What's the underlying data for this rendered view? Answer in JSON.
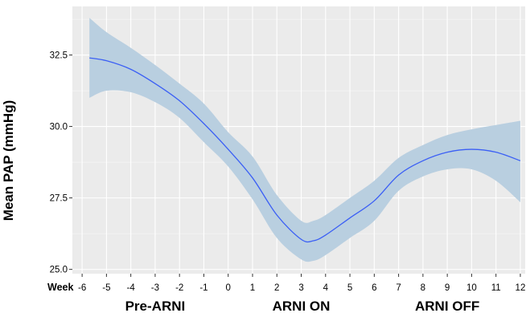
{
  "chart_data": {
    "type": "line",
    "ylabel": "Mean PAP (mmHg)",
    "x_axis_prefix": "Week",
    "x_ticks": [
      "-6",
      "-5",
      "-4",
      "-3",
      "-2",
      "-1",
      "0",
      "1",
      "2",
      "3",
      "4",
      "5",
      "6",
      "7",
      "8",
      "9",
      "10",
      "11",
      "12"
    ],
    "y_ticks": [
      "25.0",
      "27.5",
      "30.0",
      "32.5"
    ],
    "xlim": [
      -6.4,
      12.2
    ],
    "ylim": [
      24.85,
      34.2
    ],
    "phase_labels": [
      {
        "text": "Pre-ARNI",
        "at_week": -3
      },
      {
        "text": "ARNI ON",
        "at_week": 3
      },
      {
        "text": "ARNI OFF",
        "at_week": 9
      }
    ],
    "grid": true,
    "series": [
      {
        "line_color": "#3b5ff5",
        "band_color": "#b9cfe0",
        "x": [
          -5.7,
          -5,
          -4,
          -3,
          -2,
          -1,
          0,
          1,
          2,
          3,
          3.5,
          4,
          5,
          6,
          7,
          8,
          9,
          10,
          11,
          12
        ],
        "y": [
          32.4,
          32.3,
          32.0,
          31.5,
          30.9,
          30.1,
          29.2,
          28.2,
          26.9,
          26.05,
          26.0,
          26.2,
          26.8,
          27.4,
          28.3,
          28.8,
          29.1,
          29.2,
          29.1,
          28.8
        ],
        "lower": [
          31.0,
          31.25,
          31.2,
          30.85,
          30.3,
          29.45,
          28.6,
          27.45,
          26.1,
          25.35,
          25.3,
          25.5,
          26.1,
          26.7,
          27.75,
          28.25,
          28.5,
          28.5,
          28.1,
          27.35
        ],
        "upper": [
          33.8,
          33.3,
          32.75,
          32.15,
          31.5,
          30.8,
          29.8,
          28.95,
          27.6,
          26.7,
          26.7,
          26.9,
          27.5,
          28.1,
          28.9,
          29.35,
          29.7,
          29.9,
          30.05,
          30.2
        ]
      }
    ]
  }
}
